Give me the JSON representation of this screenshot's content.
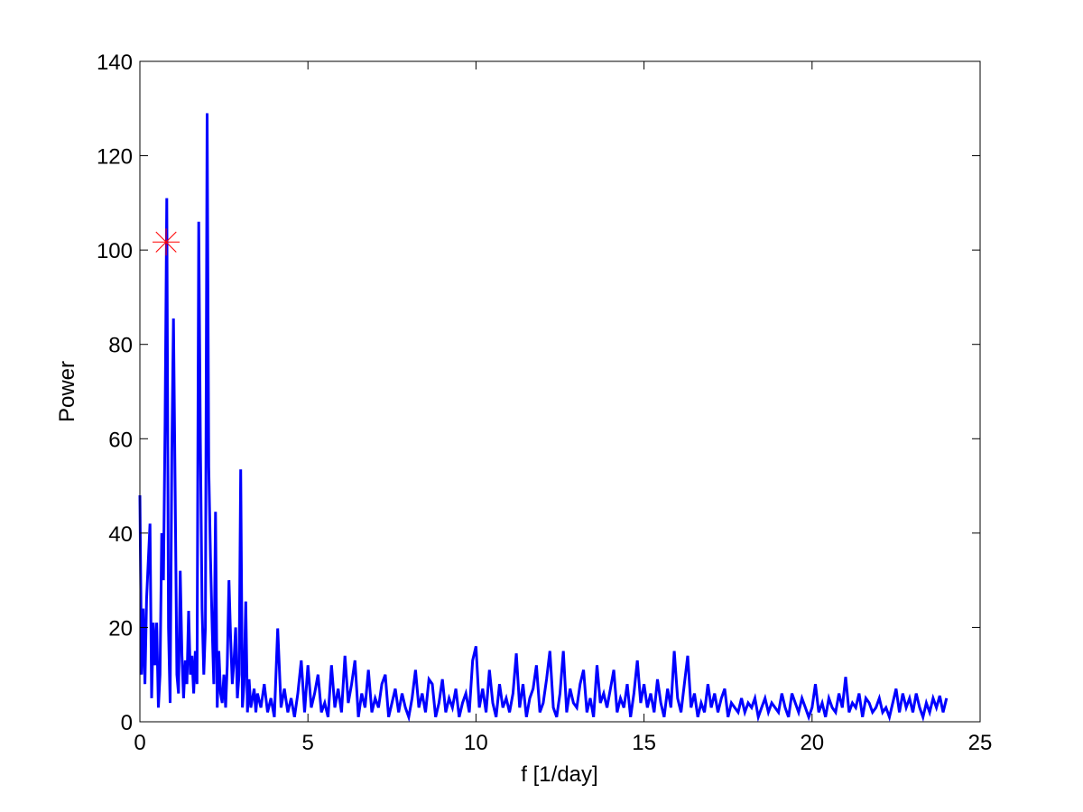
{
  "chart_data": {
    "type": "line",
    "title": "",
    "xlabel": "f [1/day]",
    "ylabel": "Power",
    "xlim": [
      0,
      25
    ],
    "ylim": [
      0,
      140
    ],
    "xticks": [
      0,
      5,
      10,
      15,
      20,
      25
    ],
    "yticks": [
      0,
      20,
      40,
      60,
      80,
      100,
      120,
      140
    ],
    "grid": false,
    "legend": "none",
    "series": [
      {
        "color": "#0000ff",
        "x": [
          0,
          0.05,
          0.1,
          0.15,
          0.2,
          0.25,
          0.3,
          0.35,
          0.4,
          0.45,
          0.5,
          0.55,
          0.6,
          0.65,
          0.7,
          0.75,
          0.8,
          0.85,
          0.9,
          0.95,
          1.0,
          1.05,
          1.1,
          1.15,
          1.2,
          1.25,
          1.3,
          1.35,
          1.4,
          1.45,
          1.5,
          1.55,
          1.6,
          1.65,
          1.7,
          1.75,
          1.8,
          1.85,
          1.9,
          1.95,
          2.0,
          2.05,
          2.1,
          2.15,
          2.2,
          2.25,
          2.3,
          2.35,
          2.4,
          2.45,
          2.5,
          2.55,
          2.6,
          2.65,
          2.7,
          2.75,
          2.8,
          2.85,
          2.9,
          2.95,
          3.0,
          3.05,
          3.1,
          3.15,
          3.2,
          3.25,
          3.3,
          3.35,
          3.4,
          3.45,
          3.5,
          3.6,
          3.7,
          3.8,
          3.9,
          4.0,
          4.1,
          4.2,
          4.3,
          4.4,
          4.5,
          4.6,
          4.7,
          4.8,
          4.9,
          5.0,
          5.1,
          5.2,
          5.3,
          5.4,
          5.5,
          5.6,
          5.7,
          5.8,
          5.9,
          6.0,
          6.1,
          6.2,
          6.3,
          6.4,
          6.5,
          6.6,
          6.7,
          6.8,
          6.9,
          7.0,
          7.1,
          7.2,
          7.3,
          7.4,
          7.5,
          7.6,
          7.7,
          7.8,
          7.9,
          8.0,
          8.1,
          8.2,
          8.3,
          8.4,
          8.5,
          8.6,
          8.7,
          8.8,
          8.9,
          9.0,
          9.1,
          9.2,
          9.3,
          9.4,
          9.5,
          9.6,
          9.7,
          9.8,
          9.9,
          10.0,
          10.1,
          10.2,
          10.3,
          10.4,
          10.5,
          10.6,
          10.7,
          10.8,
          10.9,
          11.0,
          11.1,
          11.2,
          11.3,
          11.4,
          11.5,
          11.6,
          11.7,
          11.8,
          11.9,
          12.0,
          12.1,
          12.2,
          12.3,
          12.4,
          12.5,
          12.6,
          12.7,
          12.8,
          12.9,
          13.0,
          13.1,
          13.2,
          13.3,
          13.4,
          13.5,
          13.6,
          13.7,
          13.8,
          13.9,
          14.0,
          14.1,
          14.2,
          14.3,
          14.4,
          14.5,
          14.6,
          14.7,
          14.8,
          14.9,
          15.0,
          15.1,
          15.2,
          15.3,
          15.4,
          15.5,
          15.6,
          15.7,
          15.8,
          15.9,
          16.0,
          16.1,
          16.2,
          16.3,
          16.4,
          16.5,
          16.6,
          16.7,
          16.8,
          16.9,
          17.0,
          17.1,
          17.2,
          17.3,
          17.4,
          17.5,
          17.6,
          17.7,
          17.8,
          17.9,
          18.0,
          18.1,
          18.2,
          18.3,
          18.4,
          18.5,
          18.6,
          18.7,
          18.8,
          18.9,
          19.0,
          19.1,
          19.2,
          19.3,
          19.4,
          19.5,
          19.6,
          19.7,
          19.8,
          19.9,
          20.0,
          20.1,
          20.2,
          20.3,
          20.4,
          20.5,
          20.6,
          20.7,
          20.8,
          20.9,
          21.0,
          21.1,
          21.2,
          21.3,
          21.4,
          21.5,
          21.6,
          21.7,
          21.8,
          21.9,
          22.0,
          22.1,
          22.2,
          22.3,
          22.4,
          22.5,
          22.6,
          22.7,
          22.8,
          22.9,
          23.0,
          23.1,
          23.2,
          23.3,
          23.4,
          23.5,
          23.6,
          23.7,
          23.8,
          23.9,
          24.0
        ],
        "y": [
          48,
          10,
          24,
          8,
          26,
          34,
          42,
          5,
          21,
          12,
          21,
          3,
          10,
          40,
          30,
          63,
          111,
          20,
          4,
          57,
          85.5,
          48.7,
          10,
          6,
          32,
          14,
          5,
          13,
          8,
          23.5,
          10,
          14,
          6,
          15,
          8,
          106,
          60,
          24,
          10,
          20,
          129,
          54,
          35,
          20,
          8,
          44.5,
          3,
          15,
          6,
          4,
          10,
          3,
          12,
          30,
          18,
          8,
          13,
          20,
          5,
          10,
          53.5,
          3,
          8,
          25.5,
          2,
          9,
          3,
          5,
          7,
          2,
          6,
          3,
          8,
          2,
          5,
          1,
          19.8,
          3,
          7,
          2,
          5,
          1,
          6,
          13,
          2,
          12,
          3,
          6,
          10,
          2,
          4,
          1,
          12,
          3,
          7,
          2,
          14,
          4,
          8,
          13,
          1,
          6,
          3,
          11,
          2,
          5,
          3,
          8,
          10,
          1,
          4,
          7,
          2,
          6,
          3,
          1,
          5,
          11,
          3,
          6,
          2,
          9,
          8,
          1,
          4,
          9,
          2,
          5,
          3,
          7,
          1,
          4,
          6,
          2,
          13,
          16,
          3,
          7,
          2,
          11,
          4,
          1,
          8,
          3,
          5,
          2,
          6,
          14.5,
          3,
          8,
          1,
          5,
          7,
          12,
          2,
          4,
          9,
          15,
          3,
          1,
          6,
          15,
          2,
          7,
          4,
          3,
          8,
          11,
          2,
          5,
          1,
          12,
          4,
          6,
          3,
          7,
          11,
          2,
          5,
          3,
          8,
          1,
          6,
          13,
          4,
          8,
          3,
          6,
          2,
          9,
          4,
          1,
          7,
          3,
          15,
          5,
          2,
          8,
          14,
          3,
          6,
          1,
          4,
          2,
          8,
          3,
          6,
          2,
          5,
          7,
          1,
          4,
          3,
          2,
          5,
          2,
          4,
          3,
          5,
          1,
          3,
          5,
          2,
          4,
          3,
          2,
          6,
          3,
          1,
          6,
          4,
          2,
          5,
          3,
          1,
          3,
          8,
          2,
          4,
          1,
          5,
          3,
          2,
          6,
          3,
          9.5,
          2,
          4,
          3,
          6,
          1,
          5,
          4,
          2,
          3,
          5,
          2,
          3,
          1,
          4,
          7,
          2,
          6,
          3,
          5,
          2,
          6,
          3,
          1,
          4,
          2,
          5,
          3,
          5.5,
          2,
          5
        ]
      }
    ],
    "markers": [
      {
        "x": 0.78,
        "y": 101.7,
        "symbol": "asterisk",
        "color": "#ff0000"
      }
    ]
  }
}
